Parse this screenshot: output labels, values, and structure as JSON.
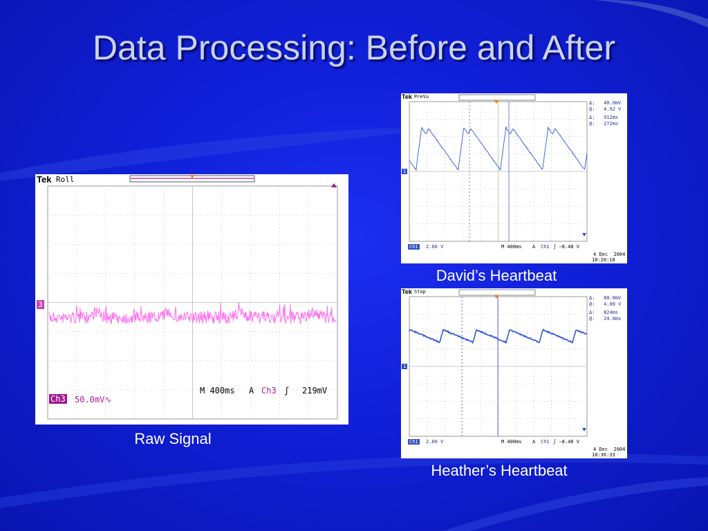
{
  "slide": {
    "title": "Data Processing: Before and After"
  },
  "raw": {
    "caption": "Raw Signal",
    "brand": "Tek",
    "mode": "Roll",
    "channel_marker": "3",
    "timebase": "M 400ms",
    "trigger_label": "A",
    "trigger_channel": "Ch3",
    "trigger_slope": "ʃ",
    "trigger_level": "219mV",
    "channel_tag": "Ch3",
    "channel_scale": "50.0mV∿",
    "trace_color": "#ff66ee"
  },
  "david": {
    "caption": "David’s Heartbeat",
    "brand": "Tek",
    "mode": "PreVu",
    "channel_marker": "1",
    "delta_v": "Δ:   40.0mV",
    "at_v": "@:   4.92 V",
    "delta_t": "Δ:   912ms",
    "at_t": "@:   272ms",
    "channel_tag": "Ch1",
    "channel_scale": "2.00 V",
    "timebase": "M 400ms",
    "trigger_label": "A",
    "trigger_channel": "Ch1",
    "trigger_level": "ʃ −8.48 V",
    "date": "4 Dec  2004",
    "time": "18:20:18",
    "trace_color": "#4466dd"
  },
  "heather": {
    "caption": "Heather’s Heartbeat",
    "brand": "Tek",
    "mode": "Stop",
    "channel_marker": "1",
    "delta_v": "Δ:   80.0mV",
    "at_v": "@:   4.00 V",
    "delta_t": "Δ:   824ms",
    "at_t": "@:   24.0ms",
    "channel_tag": "Ch1",
    "channel_scale": "2.00 V",
    "timebase": "M 400ms",
    "trigger_label": "A",
    "trigger_channel": "Ch1",
    "trigger_level": "ʃ −8.48 V",
    "date": "4 Dec  2004",
    "time": "18:36:33",
    "trace_color": "#3355dd"
  }
}
